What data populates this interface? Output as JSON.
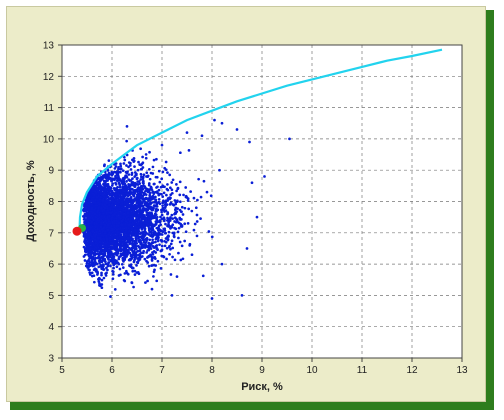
{
  "chart_data": {
    "type": "scatter",
    "title": "",
    "xlabel": "Риск, %",
    "ylabel": "Доходность, %",
    "xlim": [
      5,
      13
    ],
    "ylim": [
      3,
      13
    ],
    "x_ticks": [
      "5",
      "6",
      "7",
      "8",
      "9",
      "10",
      "11",
      "12",
      "13"
    ],
    "y_ticks": [
      "3",
      "4",
      "5",
      "6",
      "7",
      "8",
      "9",
      "10",
      "11",
      "12",
      "13"
    ],
    "grid": "dashed",
    "frontier": {
      "x": [
        5.35,
        5.36,
        5.4,
        5.5,
        5.7,
        6.0,
        6.5,
        7.0,
        7.5,
        8.0,
        8.5,
        9.0,
        9.5,
        10.0,
        10.5,
        11.0,
        11.5,
        12.0,
        12.6
      ],
      "y": [
        7.1,
        7.5,
        7.9,
        8.3,
        8.8,
        9.2,
        9.8,
        10.2,
        10.6,
        10.9,
        11.2,
        11.45,
        11.7,
        11.9,
        12.1,
        12.3,
        12.5,
        12.65,
        12.85
      ],
      "color": "#22d3ee"
    },
    "scatter_cloud": {
      "x": [
        6.05,
        6.1,
        6.3,
        6.5,
        6.7,
        6.9,
        5.9,
        6.2,
        7.1,
        7.4,
        7.7,
        7.9,
        6.6,
        7.0,
        7.5,
        8.5,
        8.75,
        8.8,
        9.05,
        8.9,
        9.55,
        8.05,
        8.2,
        7.8,
        6.4,
        6.8,
        7.3,
        5.7,
        5.6,
        6.0,
        8.0,
        8.6,
        8.7,
        8.2,
        6.3,
        7.2,
        8.15,
        7.6
      ],
      "y": [
        7.6,
        7.1,
        6.6,
        8.1,
        7.3,
        6.5,
        6.8,
        8.6,
        7.9,
        7.2,
        6.9,
        8.3,
        9.2,
        9.8,
        10.2,
        10.3,
        9.9,
        8.6,
        8.8,
        7.5,
        10.0,
        10.6,
        10.5,
        10.1,
        5.4,
        5.2,
        5.6,
        6.0,
        7.8,
        8.9,
        4.9,
        5.0,
        6.5,
        6.0,
        10.4,
        5.0,
        9.0,
        6.3
      ],
      "color": "#0a1fd6"
    },
    "min_risk_point": {
      "x": 5.3,
      "y": 7.05,
      "color": "#e61a1a"
    },
    "adjacent_point": {
      "x": 5.4,
      "y": 7.15,
      "color": "#2bb34a"
    }
  }
}
